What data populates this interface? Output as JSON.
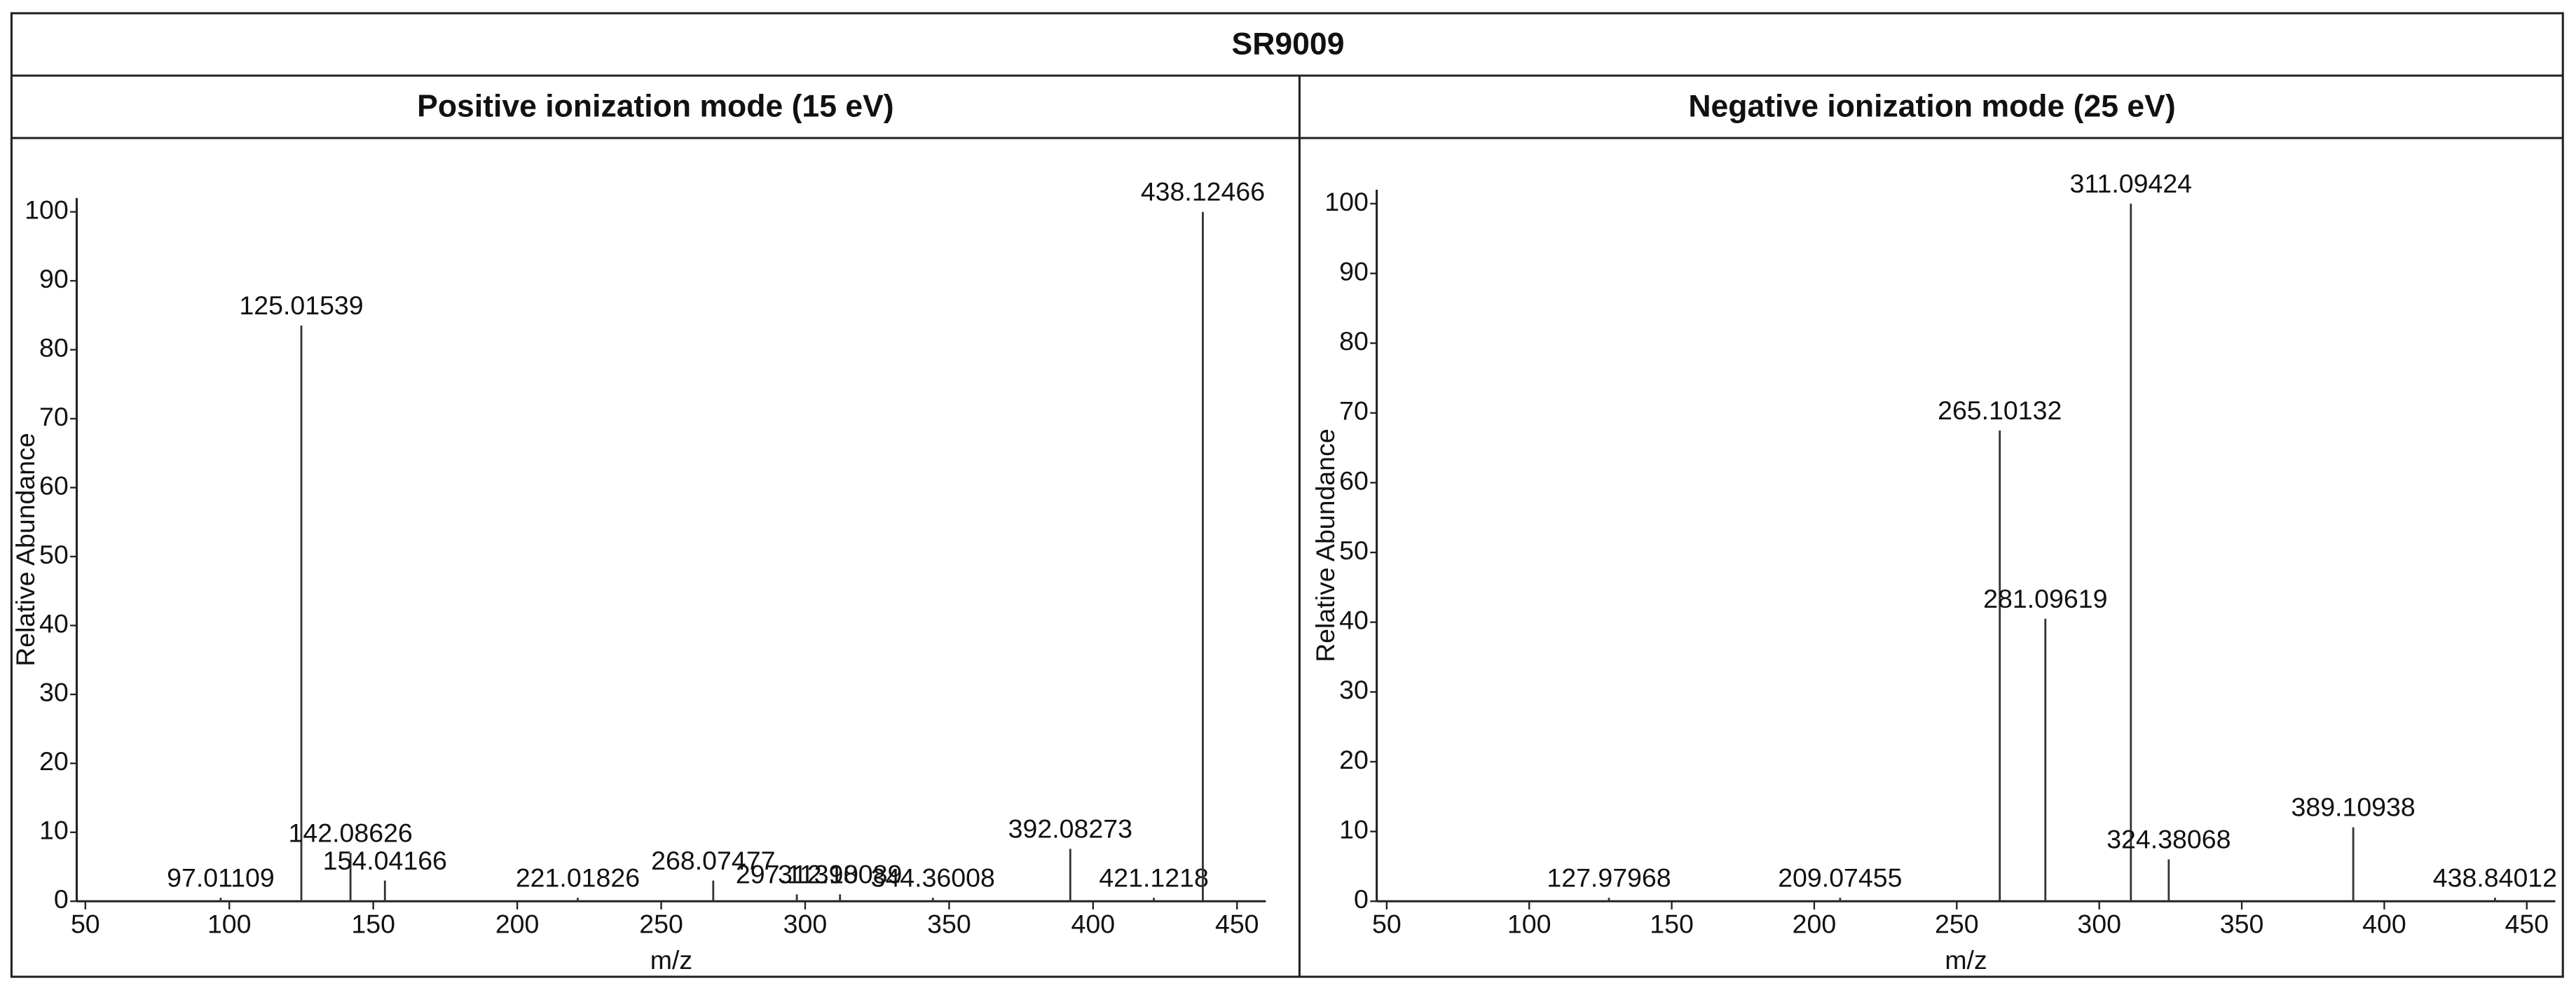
{
  "title": "SR9009",
  "chart_data": [
    {
      "type": "bar",
      "title": "Positive ionization mode (15 eV)",
      "x_label": "m/z",
      "y_label": "Relative Abundance",
      "color": "#333333",
      "x": [
        97.01109,
        125.01539,
        142.08626,
        154.04166,
        221.01826,
        268.07477,
        297.11398,
        312.10089,
        344.36008,
        392.08273,
        421.1218,
        438.12466
      ],
      "values": [
        0.5,
        83.5,
        7,
        3,
        0.5,
        3,
        1,
        1,
        0.5,
        7.6,
        0.5,
        100
      ],
      "xlim": [
        47,
        460
      ],
      "ylim": [
        0,
        102
      ],
      "xticks": [
        50,
        100,
        150,
        200,
        250,
        300,
        350,
        400,
        450
      ],
      "yticks": [
        0,
        10,
        20,
        30,
        40,
        50,
        60,
        70,
        80,
        90,
        100
      ]
    },
    {
      "type": "bar",
      "title": "Negative ionization mode (25 eV)",
      "x_label": "m/z",
      "y_label": "Relative Abundance",
      "color": "#333333",
      "x": [
        127.97968,
        209.07455,
        265.10132,
        281.09619,
        311.09424,
        324.38068,
        389.10938,
        438.84012
      ],
      "values": [
        0.5,
        0.5,
        67.5,
        40.5,
        100,
        6,
        10.6,
        0.5
      ],
      "xlim": [
        46.5,
        460
      ],
      "ylim": [
        0,
        102
      ],
      "xticks": [
        50,
        100,
        150,
        200,
        250,
        300,
        350,
        400,
        450
      ],
      "yticks": [
        0,
        10,
        20,
        30,
        40,
        50,
        60,
        70,
        80,
        90,
        100
      ]
    }
  ]
}
